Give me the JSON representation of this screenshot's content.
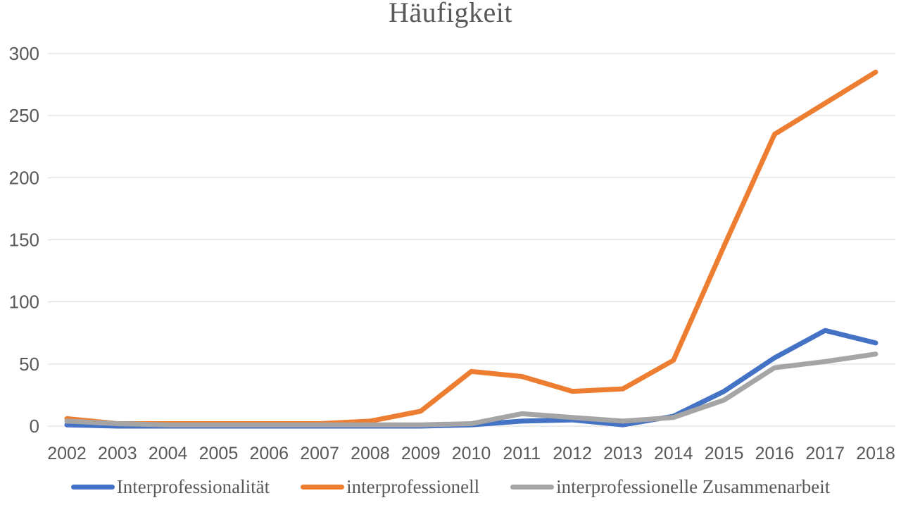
{
  "chart": {
    "title": "Häufigkeit"
  },
  "chart_data": {
    "type": "line",
    "title": "Häufigkeit",
    "xlabel": "",
    "ylabel": "",
    "x": [
      2002,
      2003,
      2004,
      2005,
      2006,
      2007,
      2008,
      2009,
      2010,
      2011,
      2012,
      2013,
      2014,
      2015,
      2016,
      2017,
      2018
    ],
    "series": [
      {
        "name": "Interprofessionalität",
        "color": "#4472C4",
        "values": [
          1,
          0,
          0,
          0,
          0,
          0,
          0,
          0,
          1,
          4,
          5,
          1,
          8,
          28,
          55,
          77,
          67
        ]
      },
      {
        "name": "interprofessionell",
        "color": "#ED7D31",
        "values": [
          6,
          2,
          2,
          2,
          2,
          2,
          4,
          12,
          44,
          40,
          28,
          30,
          53,
          145,
          235,
          260,
          285
        ]
      },
      {
        "name": "interprofessionelle Zusammenarbeit",
        "color": "#A5A5A5",
        "values": [
          4,
          2,
          1,
          1,
          1,
          1,
          1,
          1,
          2,
          10,
          7,
          4,
          7,
          21,
          47,
          52,
          58
        ]
      }
    ],
    "ylim": [
      0,
      300
    ],
    "yticks": [
      0,
      50,
      100,
      150,
      200,
      250,
      300
    ],
    "grid": true,
    "gridline_color": "#d9d9d9",
    "tick_color": "#595959",
    "legend_position": "bottom",
    "background": "#ffffff"
  }
}
